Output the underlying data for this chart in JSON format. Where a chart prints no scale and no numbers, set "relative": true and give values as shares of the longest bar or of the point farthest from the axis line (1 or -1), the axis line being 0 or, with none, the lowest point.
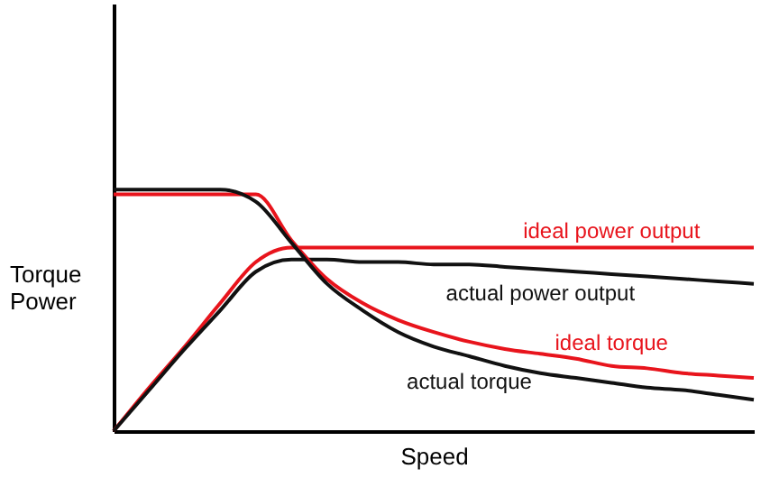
{
  "chart_data": {
    "type": "line",
    "relative": true,
    "xlabel": "Speed",
    "ylabel": "Torque\nPower",
    "grid": false,
    "categories": [
      null,
      null,
      null,
      null,
      null,
      null,
      null,
      null,
      null,
      null,
      null,
      null,
      null,
      null,
      null,
      null,
      null,
      null,
      null
    ],
    "series": [
      {
        "name": "ideal power output",
        "color": "#e8141c",
        "values": [
          0,
          0.18,
          0.35,
          0.53,
          0.7,
          0.76,
          0.76,
          0.76,
          0.76,
          0.76,
          0.76,
          0.76,
          0.76,
          0.76,
          0.76,
          0.76,
          0.76,
          0.76,
          0.76
        ]
      },
      {
        "name": "actual power output",
        "color": "#111111",
        "values": [
          0,
          0.17,
          0.34,
          0.5,
          0.66,
          0.71,
          0.71,
          0.7,
          0.7,
          0.69,
          0.69,
          0.68,
          0.67,
          0.66,
          0.65,
          0.64,
          0.63,
          0.62,
          0.61
        ]
      },
      {
        "name": "ideal torque",
        "color": "#e8141c",
        "values": [
          0.98,
          0.98,
          0.98,
          0.98,
          0.98,
          0.79,
          0.63,
          0.53,
          0.46,
          0.41,
          0.37,
          0.34,
          0.32,
          0.3,
          0.27,
          0.26,
          0.24,
          0.23,
          0.22
        ]
      },
      {
        "name": "actual torque",
        "color": "#111111",
        "values": [
          1.0,
          1.0,
          1.0,
          1.0,
          0.95,
          0.78,
          0.61,
          0.5,
          0.41,
          0.35,
          0.31,
          0.27,
          0.24,
          0.22,
          0.2,
          0.18,
          0.17,
          0.15,
          0.13
        ]
      }
    ]
  }
}
